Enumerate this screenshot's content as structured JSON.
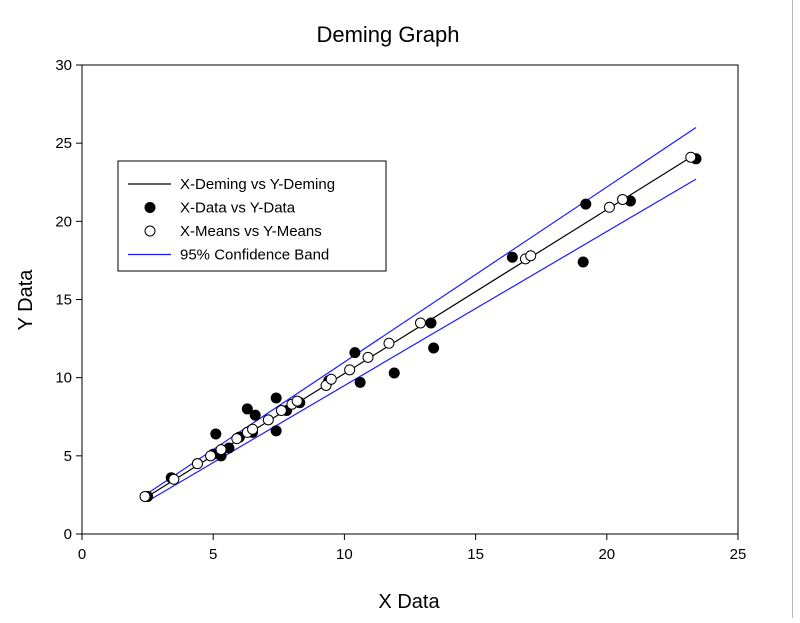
{
  "chart_data": {
    "type": "scatter",
    "title": "Deming Graph",
    "xlabel": "X Data",
    "ylabel": "Y Data",
    "xlim": [
      0,
      25
    ],
    "ylim": [
      0,
      30
    ],
    "x_ticks": [
      0,
      5,
      10,
      15,
      20,
      25
    ],
    "y_ticks": [
      0,
      5,
      10,
      15,
      20,
      25,
      30
    ],
    "grid": false,
    "legend_position": "upper-left",
    "series": [
      {
        "name": "X-Deming vs Y-Deming",
        "kind": "line",
        "color": "#000000",
        "x": [
          2.5,
          23.2
        ],
        "y": [
          2.4,
          24.1
        ]
      },
      {
        "name": "X-Data vs Y-Data",
        "kind": "scatter",
        "marker": "filled-circle",
        "color": "#000000",
        "x": [
          2.5,
          3.4,
          4.4,
          5.0,
          5.1,
          5.3,
          5.6,
          6.0,
          6.3,
          6.5,
          6.6,
          7.4,
          7.4,
          7.8,
          8.3,
          9.4,
          10.4,
          10.6,
          11.9,
          13.3,
          13.4,
          16.4,
          19.1,
          19.2,
          20.9,
          23.4
        ],
        "y": [
          2.4,
          3.6,
          4.5,
          5.1,
          6.4,
          5.0,
          5.5,
          6.2,
          8.0,
          6.5,
          7.6,
          8.7,
          6.6,
          7.9,
          8.4,
          9.8,
          11.6,
          9.7,
          10.3,
          13.5,
          11.9,
          17.7,
          17.4,
          21.1,
          21.3,
          24.0
        ]
      },
      {
        "name": "X-Means vs Y-Means",
        "kind": "scatter",
        "marker": "open-circle",
        "color": "#000000",
        "x": [
          2.4,
          3.5,
          4.4,
          4.9,
          5.3,
          5.9,
          6.3,
          6.5,
          7.1,
          7.6,
          8.0,
          8.2,
          9.3,
          9.5,
          10.2,
          10.9,
          11.7,
          12.9,
          16.9,
          17.1,
          20.1,
          20.6,
          23.2
        ],
        "y": [
          2.4,
          3.5,
          4.5,
          5.0,
          5.4,
          6.1,
          6.5,
          6.7,
          7.3,
          7.9,
          8.3,
          8.5,
          9.5,
          9.9,
          10.5,
          11.3,
          12.2,
          13.5,
          17.6,
          17.8,
          20.9,
          21.4,
          24.1
        ]
      },
      {
        "name": "95% Confidence Band",
        "kind": "band",
        "color": "#1a1aff",
        "upper": {
          "x": [
            2.5,
            23.4
          ],
          "y": [
            2.6,
            26.0
          ]
        },
        "lower": {
          "x": [
            2.6,
            23.4
          ],
          "y": [
            2.2,
            22.7
          ]
        }
      }
    ]
  }
}
